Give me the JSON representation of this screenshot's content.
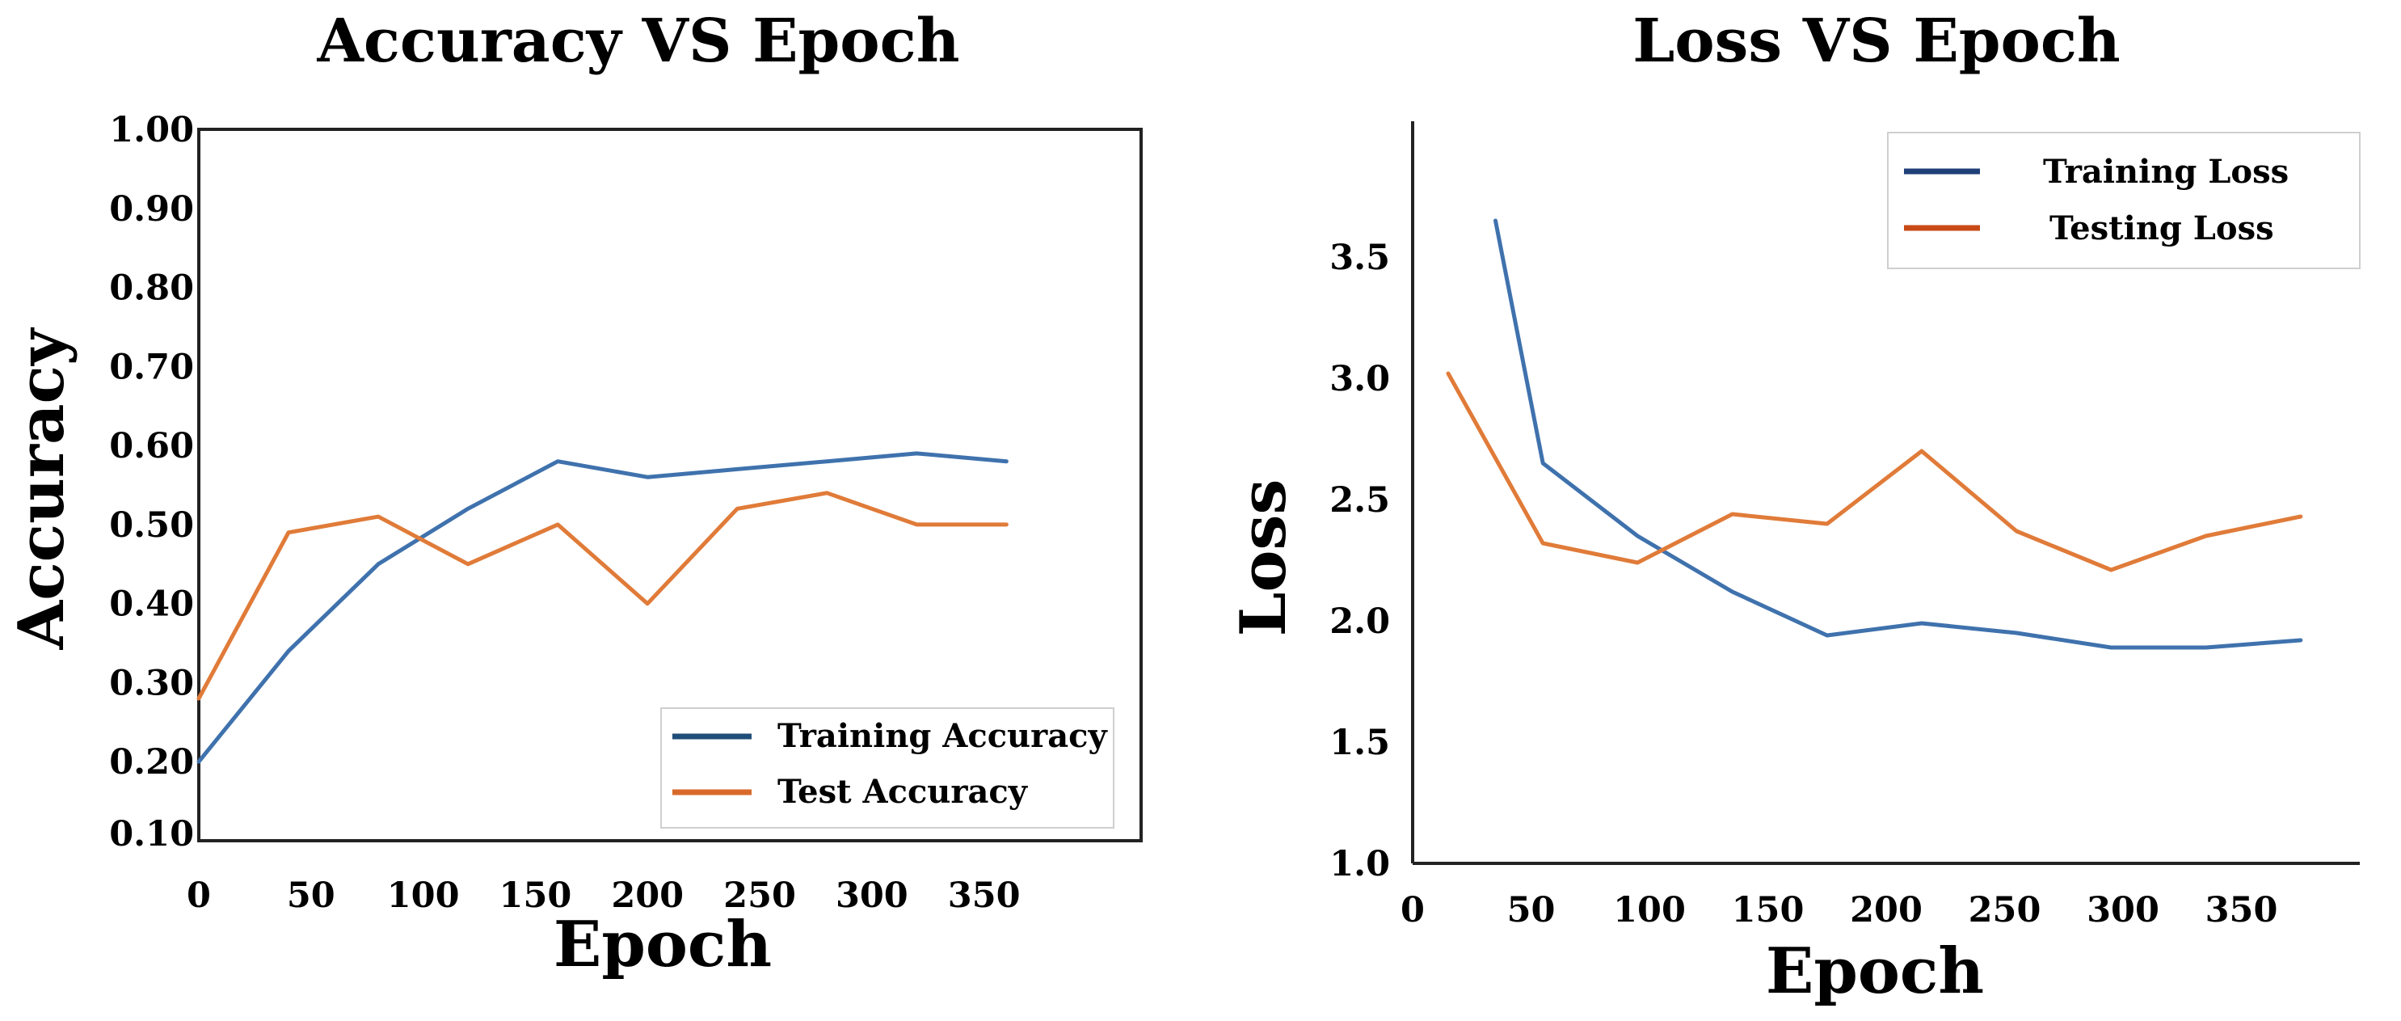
{
  "chart_data": [
    {
      "type": "line",
      "title": "Accuracy VS Epoch",
      "xlabel": "Epoch",
      "ylabel": "Accuracy",
      "xlim": [
        0,
        420
      ],
      "ylim": [
        0.1,
        1.0
      ],
      "xticks": [
        0,
        50,
        100,
        150,
        200,
        250,
        300,
        350
      ],
      "xtick_labels": [
        "0",
        "50",
        "100",
        "150",
        "200",
        "250",
        "300",
        "350"
      ],
      "yticks": [
        0.2,
        0.3,
        0.4,
        0.5,
        0.6,
        0.7,
        0.8,
        0.9,
        1.0
      ],
      "ytick_labels": [
        "0.20",
        "0.30",
        "0.40",
        "0.50",
        "0.60",
        "0.70",
        "0.80",
        "0.90",
        "1.00"
      ],
      "extra_ytick_label": "0.10",
      "grid": false,
      "legend_position": "lower-right",
      "series": [
        {
          "name": "Training Accuracy",
          "color": "#3f72ad",
          "legend_color": "#1f4e79",
          "x": [
            0,
            40,
            80,
            120,
            160,
            200,
            240,
            280,
            320,
            360
          ],
          "y": [
            0.2,
            0.34,
            0.45,
            0.52,
            0.58,
            0.56,
            0.57,
            0.58,
            0.59,
            0.58
          ]
        },
        {
          "name": "Test Accuracy",
          "color": "#e07b39",
          "legend_color": "#d9692a",
          "x": [
            0,
            40,
            80,
            120,
            160,
            200,
            240,
            280,
            320,
            360
          ],
          "y": [
            0.28,
            0.49,
            0.51,
            0.45,
            0.5,
            0.4,
            0.52,
            0.54,
            0.5,
            0.5
          ]
        }
      ]
    },
    {
      "type": "line",
      "title": "Loss VS Epoch",
      "xlabel": "Epoch",
      "ylabel": "Loss",
      "xlim": [
        0,
        400
      ],
      "ylim": [
        1.0,
        4.0
      ],
      "xticks": [
        0,
        50,
        100,
        150,
        200,
        250,
        300,
        350
      ],
      "xtick_labels": [
        "0",
        "50",
        "100",
        "150",
        "200",
        "250",
        "300",
        "350"
      ],
      "yticks": [
        1.0,
        1.5,
        2.0,
        2.5,
        3.0,
        3.5
      ],
      "ytick_labels": [
        "1.0",
        "1.5",
        "2.0",
        "2.5",
        "3.0",
        "3.5"
      ],
      "grid": false,
      "legend_position": "upper-right",
      "series": [
        {
          "name": "Training Loss",
          "color": "#3f72ad",
          "legend_color": "#1f3f78",
          "x": [
            35,
            55,
            95,
            135,
            175,
            215,
            255,
            295,
            335,
            375
          ],
          "y": [
            3.65,
            2.65,
            2.35,
            2.12,
            1.94,
            1.99,
            1.95,
            1.89,
            1.89,
            1.92
          ]
        },
        {
          "name": "Testing Loss",
          "color": "#e07b39",
          "legend_color": "#c84a16",
          "x": [
            15,
            55,
            95,
            135,
            175,
            215,
            255,
            295,
            335,
            375
          ],
          "y": [
            3.02,
            2.32,
            2.24,
            2.44,
            2.4,
            2.7,
            2.37,
            2.21,
            2.35,
            2.43
          ]
        }
      ]
    }
  ]
}
